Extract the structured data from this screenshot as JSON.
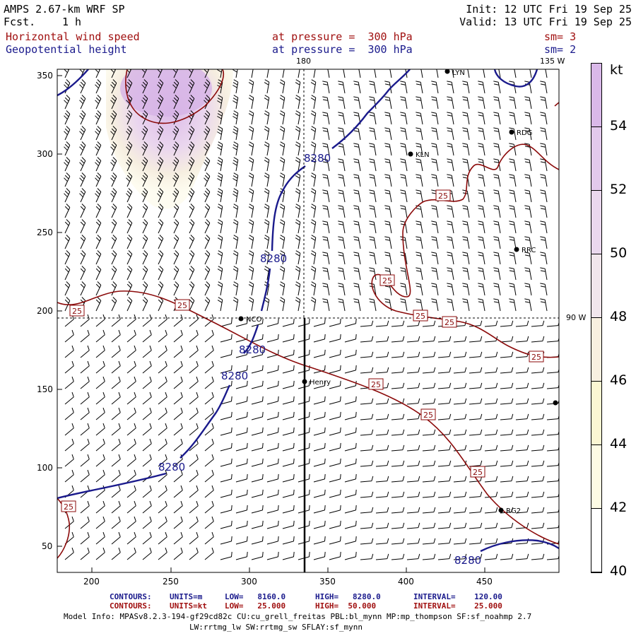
{
  "header": {
    "model": "AMPS 2.67-km WRF SP",
    "fcst_label": "Fcst.",
    "fcst_value": "1 h",
    "init": "Init: 12 UTC Fri 19 Sep 25",
    "valid": "Valid: 13 UTC Fri 19 Sep 25",
    "field1_name": "Horizontal wind speed",
    "field1_level": "at pressure =  300 hPa",
    "field1_sm": "sm= 3",
    "field2_name": "Geopotential height",
    "field2_level": "at pressure =  300 hPa",
    "field2_sm": "sm= 2"
  },
  "map": {
    "top_labels": {
      "meridian_180": "180",
      "meridian_135w": "135 W"
    },
    "right_label_90w": "90 W",
    "x_ticks": [
      "200",
      "250",
      "300",
      "350",
      "400",
      "450"
    ],
    "y_ticks": [
      "350",
      "300",
      "250",
      "200",
      "150",
      "100",
      "50"
    ],
    "stations": [
      "LYN",
      "RDG",
      "KLN",
      "NCO",
      "RRC",
      "Henry",
      "RG2"
    ],
    "height_contour_label": "8280",
    "speed_contour_label": "25"
  },
  "colorbar": {
    "unit": "kt",
    "labels": [
      "54",
      "52",
      "50",
      "48",
      "46",
      "44",
      "42",
      "40"
    ],
    "colors": [
      "#d9b8e8",
      "#e2c9ec",
      "#ead8ee",
      "#f1e6ec",
      "#f8f0e0",
      "#fbf6d2",
      "#fdfbe4",
      "#ffffff"
    ]
  },
  "footer": {
    "row1": {
      "contours": "CONTOURS:",
      "units": "UNITS=m",
      "low": "LOW=   8160.0",
      "high": "HIGH=   8280.0",
      "interval": "INTERVAL=    120.00"
    },
    "row2": {
      "contours": "CONTOURS:",
      "units": "UNITS=kt",
      "low": "LOW=   25.000",
      "high": "HIGH=  50.000",
      "interval": "INTERVAL=    25.000"
    },
    "model_info_1": "Model Info: MPASv8.2.3-194-gf29cd82c CU:cu_grell_freitas PBL:bl_mynn MP:mp_thompson SF:sf_noahmp 2.7",
    "model_info_2": "LW:rrtmg_lw SW:rrtmg_sw SFLAY:sf_mynn"
  }
}
